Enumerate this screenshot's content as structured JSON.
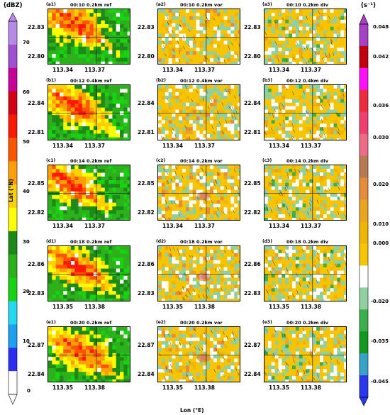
{
  "colors": {
    "ref_cmap": [
      "#ffffff",
      "#2c2cf5",
      "#1ba1ef",
      "#22d8f2",
      "#18d310",
      "#2cb01c",
      "#1c8a18",
      "#ffff00",
      "#ffd000",
      "#ff9f00",
      "#ff5400",
      "#ff1800",
      "#d30014",
      "#c8009a",
      "#a050d0",
      "#b88ae8"
    ],
    "vd_cmap": [
      "#2938ee",
      "#38a3c9",
      "#119a1d",
      "#3aaf4a",
      "#8fcfa0",
      "#ffffff",
      "#f6c400",
      "#f1b500",
      "#eba320",
      "#e58b3a",
      "#b87a52",
      "#ee6b86",
      "#ef3f70",
      "#ee2b3f",
      "#ff10f8",
      "#c2000c",
      "#a640c6"
    ]
  },
  "left_colorbar": {
    "unit": "(dBZ)",
    "ticks": [
      "70",
      "60",
      "50",
      "40",
      "30",
      "20",
      "10",
      "0"
    ]
  },
  "right_colorbar": {
    "unit": "(s⁻¹)",
    "ticks": [
      "0.048",
      "0.042",
      "0.036",
      "0.030",
      "0.020",
      "0.010",
      "0.000",
      "-0.020",
      "-0.035",
      "-0.045"
    ]
  },
  "axes": {
    "ylabel": "Lat (°N)",
    "xlabel": "Lon (°E)"
  },
  "rows": [
    {
      "lat": [
        "22.83",
        "22.80"
      ],
      "lon": [
        "113.34",
        "113.37"
      ],
      "panels": [
        {
          "label": "(a1)",
          "title": "00:10 0.2km ref",
          "type": "ref"
        },
        {
          "label": "(a2)",
          "title": "00:10 0.2km vor",
          "type": "vor"
        },
        {
          "label": "(a3)",
          "title": "00:10 0.2km div",
          "type": "div"
        }
      ]
    },
    {
      "lat": [
        "22.84",
        "22.81"
      ],
      "lon": [
        "113.34",
        "113.37"
      ],
      "panels": [
        {
          "label": "(b1)",
          "title": "00:12 0.4km ref",
          "type": "ref"
        },
        {
          "label": "(b2)",
          "title": "00:12 0.4km vor",
          "type": "vor"
        },
        {
          "label": "(b3)",
          "title": "00:12 0.4km div",
          "type": "div"
        }
      ]
    },
    {
      "lat": [
        "22.85",
        "22.82"
      ],
      "lon": [
        "113.34",
        "113.37"
      ],
      "panels": [
        {
          "label": "(c1)",
          "title": "00:14 0.2km ref",
          "type": "ref"
        },
        {
          "label": "(c2)",
          "title": "00:14 0.2km vor",
          "type": "vor"
        },
        {
          "label": "(c3)",
          "title": "00:14 0.2km div",
          "type": "div"
        }
      ]
    },
    {
      "lat": [
        "22.86",
        "22.83"
      ],
      "lon": [
        "113.35",
        "113.38"
      ],
      "panels": [
        {
          "label": "(d1)",
          "title": "00:18 0.2km ref",
          "type": "ref"
        },
        {
          "label": "(d2)",
          "title": "00:18 0.2km vor",
          "type": "vor"
        },
        {
          "label": "(d3)",
          "title": "00:18 0.2km div",
          "type": "div"
        }
      ]
    },
    {
      "lat": [
        "22.87",
        "22.84"
      ],
      "lon": [
        "113.35",
        "113.38"
      ],
      "panels": [
        {
          "label": "(e1)",
          "title": "00:20 0.2km ref",
          "type": "ref"
        },
        {
          "label": "(e2)",
          "title": "00:20 0.2km vor",
          "type": "vor"
        },
        {
          "label": "(e3)",
          "title": "00:20 0.2km div",
          "type": "div"
        }
      ]
    }
  ]
}
